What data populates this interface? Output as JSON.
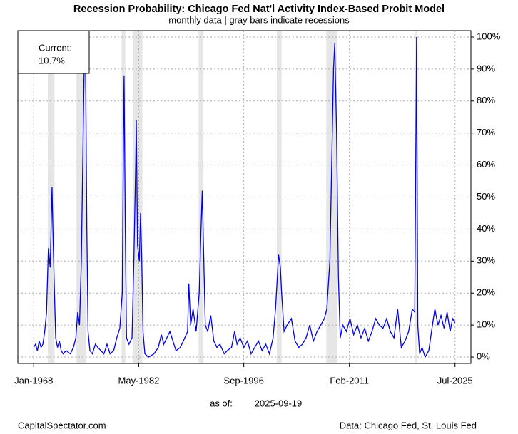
{
  "chart_data": {
    "type": "line",
    "title": "Recession Probability: Chicago Fed Nat'l Activity Index-Based Probit Model",
    "subtitle": "monthly data | gray bars indicate recessions",
    "current_label": "Current:",
    "current_value_label": "10.7%",
    "as_of_label": "as of:",
    "as_of_date": "2025-09-19",
    "source_left": "CapitalSpectator.com",
    "source_right": "Data: Chicago Fed, St. Louis Fed",
    "x": [
      "1968-01",
      "1968-04",
      "1968-07",
      "1968-10",
      "1969-01",
      "1969-04",
      "1969-07",
      "1969-10",
      "1970-01",
      "1970-04",
      "1970-07",
      "1970-09",
      "1970-11",
      "1971-01",
      "1971-04",
      "1971-07",
      "1971-10",
      "1972-01",
      "1972-06",
      "1973-01",
      "1973-06",
      "1973-10",
      "1974-01",
      "1974-04",
      "1974-07",
      "1974-10",
      "1974-12",
      "1975-02",
      "1975-04",
      "1975-06",
      "1975-09",
      "1976-01",
      "1976-06",
      "1976-10",
      "1977-03",
      "1977-08",
      "1978-01",
      "1978-06",
      "1978-12",
      "1979-05",
      "1979-10",
      "1980-02",
      "1980-04",
      "1980-05",
      "1980-07",
      "1980-09",
      "1981-01",
      "1981-06",
      "1981-09",
      "1981-12",
      "1982-01",
      "1982-03",
      "1982-06",
      "1982-08",
      "1982-10",
      "1982-12",
      "1983-03",
      "1983-09",
      "1984-06",
      "1985-01",
      "1985-06",
      "1985-10",
      "1986-03",
      "1986-08",
      "1987-01",
      "1987-06",
      "1988-01",
      "1988-06",
      "1989-01",
      "1989-03",
      "1989-06",
      "1989-10",
      "1990-03",
      "1990-08",
      "1990-11",
      "1991-01",
      "1991-03",
      "1991-06",
      "1991-10",
      "1992-03",
      "1992-08",
      "1993-01",
      "1993-06",
      "1994-01",
      "1994-06",
      "1995-01",
      "1995-06",
      "1995-10",
      "1996-03",
      "1996-09",
      "1997-03",
      "1997-09",
      "1998-03",
      "1998-09",
      "1999-03",
      "1999-09",
      "2000-03",
      "2000-09",
      "2001-01",
      "2001-04",
      "2001-06",
      "2001-09",
      "2001-11",
      "2002-03",
      "2002-08",
      "2003-03",
      "2003-09",
      "2004-03",
      "2004-09",
      "2005-03",
      "2005-09",
      "2006-03",
      "2006-09",
      "2007-03",
      "2007-09",
      "2008-01",
      "2008-06",
      "2008-09",
      "2008-12",
      "2009-02",
      "2009-05",
      "2009-08",
      "2009-11",
      "2010-03",
      "2010-09",
      "2011-03",
      "2011-09",
      "2012-03",
      "2012-09",
      "2013-03",
      "2013-09",
      "2014-03",
      "2014-09",
      "2015-03",
      "2015-09",
      "2016-03",
      "2016-09",
      "2017-03",
      "2017-09",
      "2018-03",
      "2018-09",
      "2019-03",
      "2019-09",
      "2020-01",
      "2020-03",
      "2020-04",
      "2020-06",
      "2020-09",
      "2021-01",
      "2021-06",
      "2021-12",
      "2022-06",
      "2022-10",
      "2023-03",
      "2023-08",
      "2024-01",
      "2024-06",
      "2024-11",
      "2025-03",
      "2025-07"
    ],
    "series": [
      {
        "name": "Recession Probability",
        "color": "#0000ee",
        "values": [
          3,
          4,
          2,
          5,
          3,
          4,
          8,
          14,
          34,
          28,
          53,
          35,
          20,
          6,
          3,
          5,
          2,
          1,
          2,
          1,
          3,
          6,
          14,
          10,
          30,
          70,
          95,
          90,
          40,
          8,
          2,
          1,
          4,
          3,
          2,
          1,
          4,
          1,
          2,
          6,
          9,
          20,
          70,
          88,
          40,
          6,
          4,
          6,
          30,
          60,
          74,
          35,
          30,
          45,
          30,
          8,
          1,
          0,
          1,
          3,
          7,
          4,
          6,
          8,
          5,
          2,
          3,
          5,
          8,
          23,
          10,
          15,
          8,
          20,
          40,
          52,
          35,
          10,
          8,
          13,
          5,
          3,
          4,
          1,
          2,
          3,
          8,
          4,
          6,
          3,
          5,
          1,
          3,
          5,
          2,
          4,
          1,
          6,
          15,
          25,
          32,
          28,
          20,
          8,
          10,
          12,
          5,
          3,
          4,
          6,
          10,
          5,
          8,
          10,
          12,
          15,
          30,
          60,
          90,
          98,
          70,
          25,
          6,
          10,
          8,
          12,
          7,
          10,
          6,
          9,
          5,
          8,
          12,
          10,
          9,
          12,
          8,
          6,
          15,
          3,
          5,
          8,
          15,
          14,
          70,
          100,
          10,
          1,
          3,
          0,
          2,
          10,
          15,
          10,
          13,
          9,
          14,
          8,
          12,
          10.7
        ]
      }
    ],
    "recessions": [
      [
        "1969-12",
        "1970-11"
      ],
      [
        "1973-11",
        "1975-03"
      ],
      [
        "1980-01",
        "1980-07"
      ],
      [
        "1981-07",
        "1982-11"
      ],
      [
        "1990-07",
        "1991-03"
      ],
      [
        "2001-03",
        "2001-11"
      ],
      [
        "2007-12",
        "2009-06"
      ],
      [
        "2020-02",
        "2020-04"
      ]
    ],
    "recession_color": "#e6e6e6",
    "xlim": [
      "1965-11",
      "2027-09"
    ],
    "xticks": [
      {
        "value": "1968-01",
        "label": "Jan-1968"
      },
      {
        "value": "1982-05",
        "label": "May-1982"
      },
      {
        "value": "1996-09",
        "label": "Sep-1996"
      },
      {
        "value": "2011-02",
        "label": "Feb-2011"
      },
      {
        "value": "2025-07",
        "label": "Jul-2025"
      }
    ],
    "ylim": [
      -2,
      102
    ],
    "yticks": [
      {
        "value": 0,
        "label": "0%"
      },
      {
        "value": 10,
        "label": "10%"
      },
      {
        "value": 20,
        "label": "20%"
      },
      {
        "value": 30,
        "label": "30%"
      },
      {
        "value": 40,
        "label": "40%"
      },
      {
        "value": 50,
        "label": "50%"
      },
      {
        "value": 60,
        "label": "60%"
      },
      {
        "value": 70,
        "label": "70%"
      },
      {
        "value": 80,
        "label": "80%"
      },
      {
        "value": 90,
        "label": "90%"
      },
      {
        "value": 100,
        "label": "100%"
      }
    ],
    "grid": true
  }
}
